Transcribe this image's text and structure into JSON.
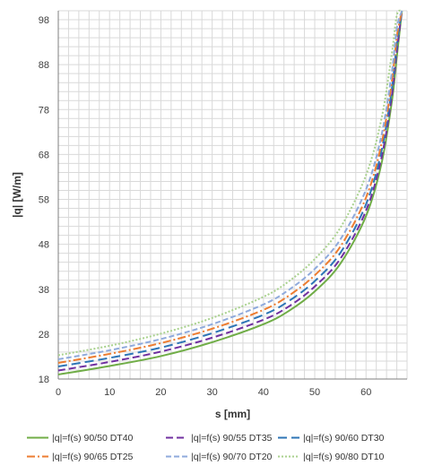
{
  "chart_data": {
    "type": "line",
    "xlabel": "s [mm]",
    "ylabel": "|q| [W/m]",
    "xlim": [
      0,
      68
    ],
    "ylim": [
      18,
      100
    ],
    "x_ticks": [
      0,
      10,
      20,
      30,
      40,
      50,
      60
    ],
    "y_ticks": [
      18,
      28,
      38,
      48,
      58,
      68,
      78,
      88,
      98
    ],
    "grid": true,
    "legend_placement": "bottom",
    "series": [
      {
        "name": "|q|=f(s) 90/50 DT40",
        "color": "#70AD47",
        "dash": "solid",
        "x": [
          0,
          10,
          20,
          30,
          40,
          45,
          50,
          55,
          60,
          63,
          65,
          66,
          67
        ],
        "y": [
          19.0,
          20.9,
          23.1,
          26.2,
          30.2,
          33.2,
          37.5,
          43.7,
          54.3,
          65.9,
          79.5,
          89.7,
          100
        ]
      },
      {
        "name": "|q|=f(s) 90/55 DT35",
        "color": "#7030A0",
        "dash": "8,4",
        "x": [
          0,
          10,
          20,
          30,
          40,
          45,
          50,
          55,
          60,
          63,
          65,
          66,
          67
        ],
        "y": [
          19.9,
          21.8,
          24.1,
          27.2,
          31.2,
          34.2,
          38.6,
          44.8,
          55.5,
          67.2,
          80.8,
          91.0,
          100
        ]
      },
      {
        "name": "|q|=f(s) 90/60 DT30",
        "color": "#2E75B6",
        "dash": "10,5",
        "x": [
          0,
          10,
          20,
          30,
          40,
          45,
          50,
          55,
          60,
          63,
          65,
          66,
          67
        ],
        "y": [
          20.8,
          22.7,
          25.0,
          28.2,
          32.3,
          35.4,
          39.8,
          46.1,
          56.9,
          68.7,
          82.3,
          92.5,
          100
        ]
      },
      {
        "name": "|q|=f(s) 90/65 DT25",
        "color": "#ED7D31",
        "dash": "9,3,2,3",
        "x": [
          0,
          10,
          20,
          30,
          40,
          45,
          50,
          55,
          60,
          63,
          65,
          66,
          67
        ],
        "y": [
          21.6,
          23.6,
          26.0,
          29.2,
          33.4,
          36.6,
          41.1,
          47.5,
          58.4,
          70.3,
          84.0,
          94.2,
          100
        ]
      },
      {
        "name": "|q|=f(s) 90/70 DT20",
        "color": "#8FAADC",
        "dash": "6,3",
        "x": [
          0,
          10,
          20,
          30,
          40,
          45,
          50,
          55,
          60,
          63,
          65,
          66,
          67
        ],
        "y": [
          22.4,
          24.4,
          26.9,
          30.2,
          34.6,
          37.9,
          42.5,
          49.1,
          60.2,
          72.2,
          86.0,
          96.1,
          100
        ]
      },
      {
        "name": "|q|=f(s) 90/80 DT10",
        "color": "#A9D18E",
        "dash": "2,2",
        "x": [
          0,
          10,
          20,
          30,
          40,
          45,
          50,
          55,
          60,
          63,
          65,
          66,
          67
        ],
        "y": [
          23.3,
          25.4,
          28.1,
          31.6,
          36.3,
          39.8,
          44.7,
          51.7,
          63.4,
          75.9,
          90.2,
          99.0,
          100
        ]
      }
    ]
  }
}
